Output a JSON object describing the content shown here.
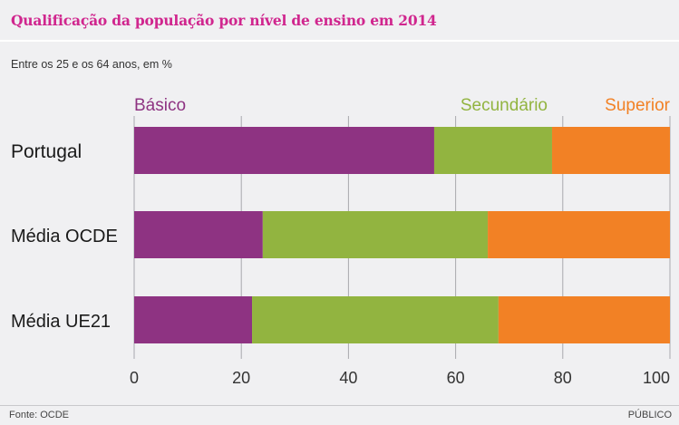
{
  "header": {
    "title": "Qualificação da população por nível de ensino em 2014",
    "subtitle": "Entre os 25 e os 64 anos, em %"
  },
  "footer": {
    "source": "Fonte: OCDE",
    "brand": "PÚBLICO"
  },
  "chart_data": {
    "type": "bar",
    "orientation": "horizontal",
    "stacked": true,
    "title": "Qualificação da população por nível de ensino em 2014",
    "subtitle": "Entre os 25 e os 64 anos, em %",
    "xlabel": "",
    "ylabel": "",
    "xlim": [
      0,
      100
    ],
    "x_ticks": [
      0,
      20,
      40,
      60,
      80,
      100
    ],
    "grid": true,
    "legend_position": "top",
    "categories": [
      "Portugal",
      "Média OCDE",
      "Média UE21"
    ],
    "series": [
      {
        "name": "Básico",
        "color": "#8e3382",
        "values": [
          56,
          24,
          22
        ]
      },
      {
        "name": "Secundário",
        "color": "#92b440",
        "values": [
          22,
          42,
          46
        ]
      },
      {
        "name": "Superior",
        "color": "#f28125",
        "values": [
          22,
          34,
          32
        ]
      }
    ]
  }
}
